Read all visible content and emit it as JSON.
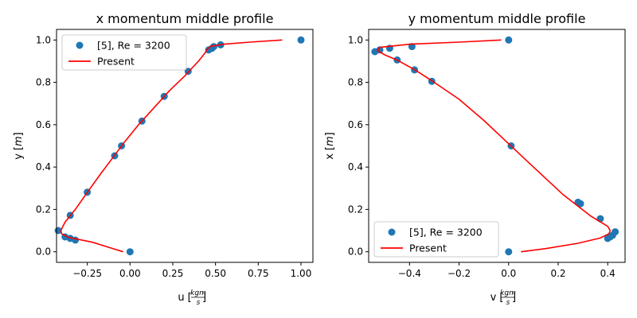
{
  "chart_data": [
    {
      "type": "line",
      "title": "x momentum middle profile",
      "xlabel": "u",
      "xunit": "kgm/s",
      "ylabel": "y",
      "yunit": "m",
      "xlim": [
        -0.43,
        1.07
      ],
      "ylim": [
        -0.05,
        1.05
      ],
      "xticks": [
        -0.25,
        0.0,
        0.25,
        0.5,
        0.75,
        1.0
      ],
      "xtick_labels": [
        "−0.25",
        "0.00",
        "0.25",
        "0.50",
        "0.75",
        "1.00"
      ],
      "yticks": [
        0.0,
        0.2,
        0.4,
        0.6,
        0.8,
        1.0
      ],
      "ytick_labels": [
        "0.0",
        "0.2",
        "0.4",
        "0.6",
        "0.8",
        "1.0"
      ],
      "legend_position": "upper-left",
      "series": [
        {
          "name": "[5], Re = 3200",
          "kind": "scatter",
          "color": "#1f77b4",
          "points": [
            [
              0.0,
              0.0
            ],
            [
              -0.32,
              0.055
            ],
            [
              -0.35,
              0.063
            ],
            [
              -0.38,
              0.07
            ],
            [
              -0.42,
              0.1
            ],
            [
              -0.35,
              0.172
            ],
            [
              -0.25,
              0.281
            ],
            [
              -0.09,
              0.453
            ],
            [
              -0.05,
              0.5
            ],
            [
              0.07,
              0.617
            ],
            [
              0.2,
              0.734
            ],
            [
              0.34,
              0.852
            ],
            [
              0.46,
              0.953
            ],
            [
              0.48,
              0.961
            ],
            [
              0.49,
              0.969
            ],
            [
              0.53,
              0.977
            ],
            [
              1.0,
              1.0
            ]
          ]
        },
        {
          "name": "Present",
          "kind": "line",
          "color": "#ff0000",
          "points": [
            [
              -0.04,
              0.0
            ],
            [
              -0.12,
              0.02
            ],
            [
              -0.22,
              0.045
            ],
            [
              -0.3,
              0.058
            ],
            [
              -0.36,
              0.068
            ],
            [
              -0.4,
              0.085
            ],
            [
              -0.405,
              0.1
            ],
            [
              -0.38,
              0.14
            ],
            [
              -0.32,
              0.2
            ],
            [
              -0.25,
              0.28
            ],
            [
              -0.17,
              0.37
            ],
            [
              -0.1,
              0.445
            ],
            [
              -0.04,
              0.51
            ],
            [
              0.05,
              0.6
            ],
            [
              0.14,
              0.68
            ],
            [
              0.23,
              0.76
            ],
            [
              0.32,
              0.83
            ],
            [
              0.4,
              0.9
            ],
            [
              0.44,
              0.94
            ],
            [
              0.45,
              0.955
            ],
            [
              0.47,
              0.97
            ],
            [
              0.55,
              0.98
            ],
            [
              0.7,
              0.99
            ],
            [
              0.89,
              1.0
            ]
          ]
        }
      ]
    },
    {
      "type": "line",
      "title": "y momentum middle profile",
      "xlabel": "v",
      "xunit": "kgm/s",
      "ylabel": "x",
      "yunit": "m",
      "xlim": [
        -0.565,
        0.47
      ],
      "ylim": [
        -0.05,
        1.05
      ],
      "xticks": [
        -0.4,
        -0.2,
        0.0,
        0.2,
        0.4
      ],
      "xtick_labels": [
        "−0.4",
        "−0.2",
        "0.0",
        "0.2",
        "0.4"
      ],
      "yticks": [
        0.0,
        0.2,
        0.4,
        0.6,
        0.8,
        1.0
      ],
      "ytick_labels": [
        "0.0",
        "0.2",
        "0.4",
        "0.6",
        "0.8",
        "1.0"
      ],
      "legend_position": "lower-left",
      "series": [
        {
          "name": "[5], Re = 3200",
          "kind": "scatter",
          "color": "#1f77b4",
          "points": [
            [
              0.0,
              0.0
            ],
            [
              0.4,
              0.063
            ],
            [
              0.41,
              0.07
            ],
            [
              0.42,
              0.078
            ],
            [
              0.43,
              0.094
            ],
            [
              0.37,
              0.156
            ],
            [
              0.29,
              0.227
            ],
            [
              0.28,
              0.234
            ],
            [
              0.01,
              0.5
            ],
            [
              -0.31,
              0.805
            ],
            [
              -0.38,
              0.859
            ],
            [
              -0.45,
              0.906
            ],
            [
              -0.39,
              0.969
            ],
            [
              -0.48,
              0.961
            ],
            [
              -0.52,
              0.953
            ],
            [
              -0.54,
              0.945
            ],
            [
              0.0,
              1.0
            ]
          ]
        },
        {
          "name": "Present",
          "kind": "line",
          "color": "#ff0000",
          "points": [
            [
              0.05,
              0.0
            ],
            [
              0.15,
              0.015
            ],
            [
              0.28,
              0.04
            ],
            [
              0.37,
              0.065
            ],
            [
              0.405,
              0.085
            ],
            [
              0.41,
              0.1
            ],
            [
              0.4,
              0.12
            ],
            [
              0.33,
              0.17
            ],
            [
              0.22,
              0.27
            ],
            [
              0.1,
              0.4
            ],
            [
              0.0,
              0.51
            ],
            [
              -0.1,
              0.62
            ],
            [
              -0.2,
              0.72
            ],
            [
              -0.3,
              0.8
            ],
            [
              -0.38,
              0.86
            ],
            [
              -0.45,
              0.905
            ],
            [
              -0.5,
              0.93
            ],
            [
              -0.53,
              0.95
            ],
            [
              -0.52,
              0.965
            ],
            [
              -0.4,
              0.98
            ],
            [
              -0.2,
              0.99
            ],
            [
              -0.03,
              1.0
            ]
          ]
        }
      ]
    }
  ]
}
